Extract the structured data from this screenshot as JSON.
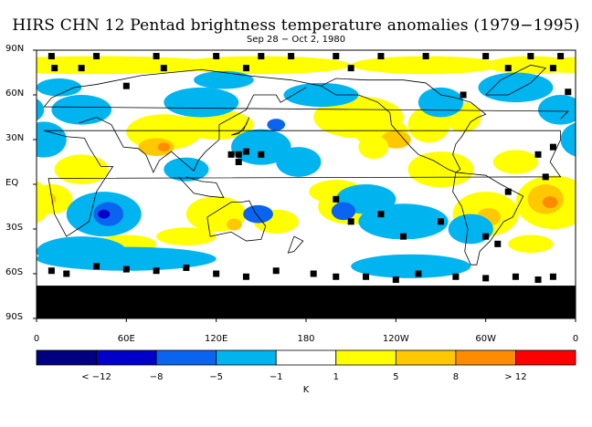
{
  "header": {
    "title": "HIRS CHN 12 Pentad brightness temperature anomalies (1979−1995)",
    "subtitle": "Sep 28 − Oct 2, 1980"
  },
  "axes": {
    "lat_labels": [
      "90N",
      "60N",
      "30N",
      "EQ",
      "30S",
      "60S",
      "90S"
    ],
    "lon_labels": [
      "0",
      "60E",
      "120E",
      "180",
      "120W",
      "60W",
      "0"
    ]
  },
  "colorbar": {
    "colors": [
      "#000080",
      "#0000c8",
      "#0a64f0",
      "#00b4f0",
      "#ffffff",
      "#ffff00",
      "#ffc800",
      "#ff8c00",
      "#ff0000"
    ],
    "labels": [
      "< −12",
      "−8",
      "−5",
      "−1",
      "1",
      "5",
      "8",
      "> 12"
    ],
    "unit": "K"
  },
  "map": {
    "missing_color": "#000000",
    "coastline_color": "#000000"
  }
}
